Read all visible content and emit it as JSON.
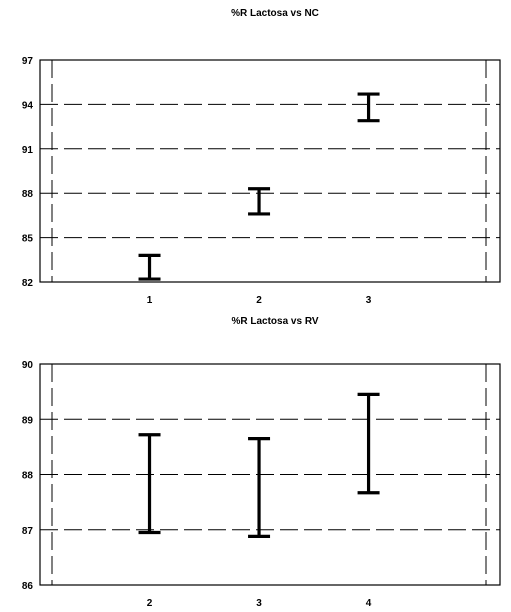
{
  "chart_data": [
    {
      "type": "errorbar",
      "title": "%R Lactosa vs NC",
      "xlabel": "",
      "ylabel": "",
      "xlim": [
        0.0,
        4.2
      ],
      "ylim": [
        82,
        97
      ],
      "x_ticks": [
        1,
        2,
        3
      ],
      "y_ticks": [
        82,
        85,
        88,
        91,
        94,
        97
      ],
      "grid": true,
      "series": [
        {
          "points": [
            {
              "x": 1,
              "low": 82.2,
              "high": 83.8
            },
            {
              "x": 2,
              "low": 86.6,
              "high": 88.3
            },
            {
              "x": 3,
              "low": 92.9,
              "high": 94.7
            }
          ]
        }
      ]
    },
    {
      "type": "errorbar",
      "title": "%R Lactosa vs RV",
      "xlabel": "",
      "ylabel": "",
      "xlim": [
        1.0,
        5.2
      ],
      "ylim": [
        86,
        90
      ],
      "x_ticks": [
        2,
        3,
        4
      ],
      "y_ticks": [
        86,
        87,
        88,
        89,
        90
      ],
      "grid": true,
      "series": [
        {
          "points": [
            {
              "x": 2,
              "low": 86.95,
              "high": 88.72
            },
            {
              "x": 3,
              "low": 86.88,
              "high": 88.65
            },
            {
              "x": 4,
              "low": 87.67,
              "high": 89.45
            }
          ]
        }
      ]
    }
  ]
}
